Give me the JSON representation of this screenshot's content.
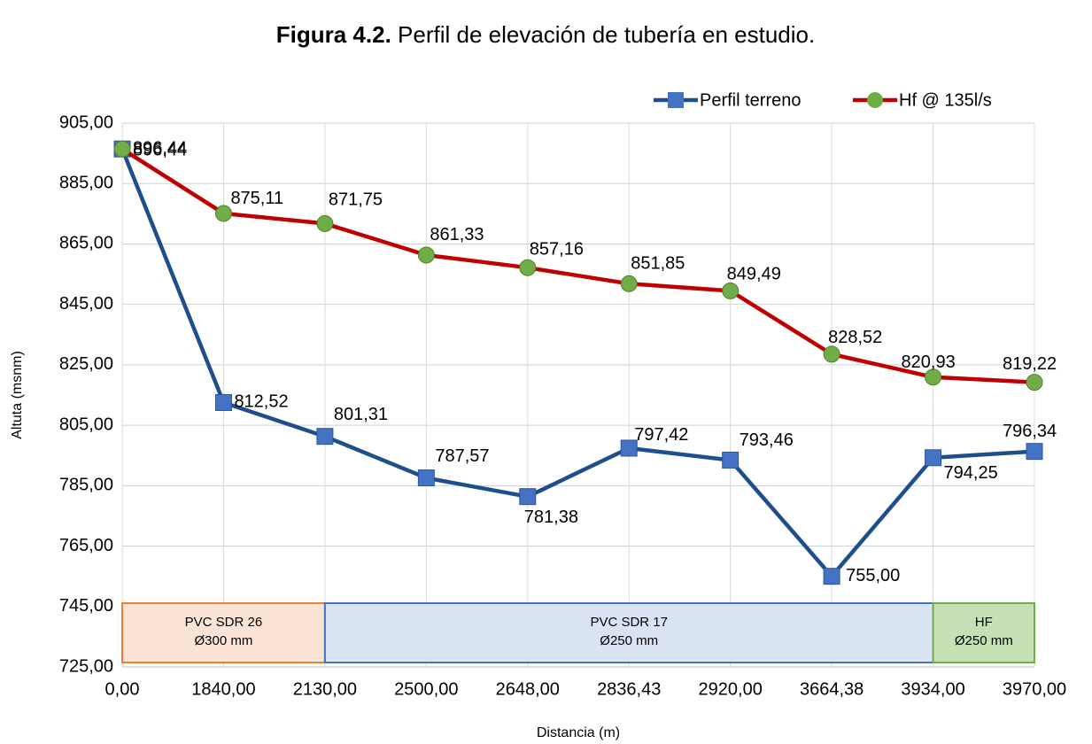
{
  "chart_data": {
    "type": "line",
    "title": {
      "number": "Figura 4.2.",
      "text": "Perfil de elevación de tubería en estudio."
    },
    "x_label": "Distancia (m)",
    "y_label": "Altuta (msnm)",
    "categories": [
      "0,00",
      "1840,00",
      "2130,00",
      "2500,00",
      "2648,00",
      "2836,43",
      "2920,00",
      "3664,38",
      "3934,00",
      "3970,00"
    ],
    "series": [
      {
        "name": "Perfil terreno",
        "color": "#1f4e8c",
        "marker_color": "#4472c4",
        "marker": "square",
        "values": [
          896.44,
          812.52,
          801.31,
          787.57,
          781.38,
          797.42,
          793.46,
          755.0,
          794.25,
          796.34
        ],
        "value_labels": [
          "896,44",
          "812,52",
          "801,31",
          "787,57",
          "781,38",
          "797,42",
          "793,46",
          "755,00",
          "794,25",
          "796,34"
        ]
      },
      {
        "name": "Hf @ 135l/s",
        "color": "#c00000",
        "marker_color": "#70ad47",
        "marker": "circle",
        "values": [
          896.44,
          875.11,
          871.75,
          861.33,
          857.16,
          851.85,
          849.49,
          828.52,
          820.93,
          819.22
        ],
        "value_labels": [
          "896,44",
          "875,11",
          "871,75",
          "861,33",
          "857,16",
          "851,85",
          "849,49",
          "828,52",
          "820,93",
          "819,22"
        ]
      }
    ],
    "ylim": [
      725,
      905
    ],
    "yticks": [
      {
        "value": 725,
        "label": "725,00"
      },
      {
        "value": 745,
        "label": "745,00"
      },
      {
        "value": 765,
        "label": "765,00"
      },
      {
        "value": 785,
        "label": "785,00"
      },
      {
        "value": 805,
        "label": "805,00"
      },
      {
        "value": 825,
        "label": "825,00"
      },
      {
        "value": 845,
        "label": "845,00"
      },
      {
        "value": 865,
        "label": "865,00"
      },
      {
        "value": 885,
        "label": "885,00"
      },
      {
        "value": 905,
        "label": "905,00"
      }
    ],
    "grid": true,
    "legend": "top-right",
    "sections": [
      {
        "lines": [
          "PVC SDR 26",
          "Ø300 mm"
        ],
        "start_category": 0,
        "end_category": 2,
        "fill": "#fbe4d5",
        "stroke": "#ed7d31"
      },
      {
        "lines": [
          "PVC SDR 17",
          "Ø250 mm"
        ],
        "start_category": 2,
        "end_category": 8,
        "fill": "#dae3f3",
        "stroke": "#4472c4"
      },
      {
        "lines": [
          "HF",
          "Ø250 mm"
        ],
        "start_category": 8,
        "end_category": 9,
        "fill": "#c5e0b4",
        "stroke": "#70ad47"
      }
    ]
  }
}
